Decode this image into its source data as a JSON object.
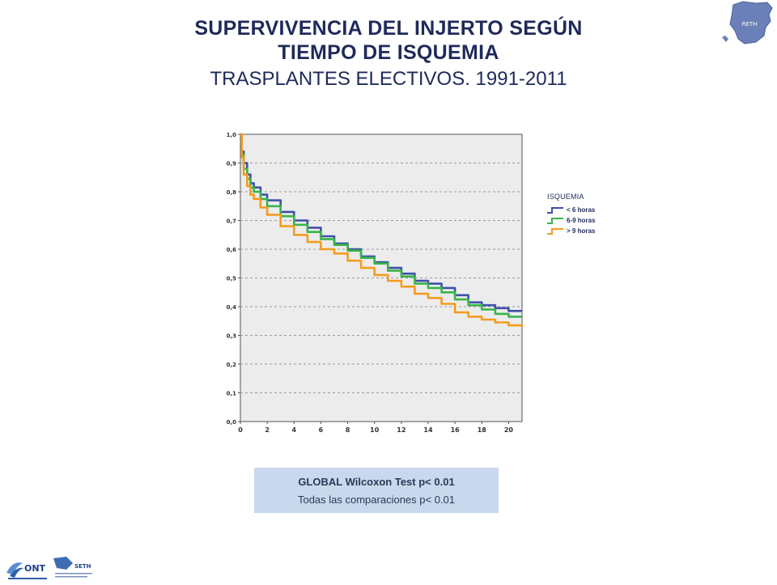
{
  "header": {
    "title_line1": "SUPERVIVENCIA DEL INJERTO SEGÚN",
    "title_line2": "TIEMPO DE ISQUEMIA",
    "subtitle": "TRASPLANTES ELECTIVOS. 1991-2011"
  },
  "logos": {
    "top_right": "RETH",
    "bottom_left_1": "ONT",
    "bottom_left_2": "SETH"
  },
  "stats_box": {
    "line1": "GLOBAL Wilcoxon Test  p< 0.01",
    "line2": "Todas las comparaciones   p< 0.01"
  },
  "legend": {
    "title": "ISQUEMIA"
  },
  "chart_data": {
    "type": "line",
    "step": true,
    "title": "",
    "xlabel": "",
    "ylabel": "",
    "xlim": [
      0,
      21
    ],
    "ylim": [
      0,
      1
    ],
    "x_ticks": [
      0,
      2,
      4,
      6,
      8,
      10,
      12,
      14,
      16,
      18,
      20
    ],
    "y_ticks": [
      0.0,
      0.1,
      0.2,
      0.3,
      0.4,
      0.5,
      0.6,
      0.7,
      0.8,
      0.9,
      1.0
    ],
    "y_tick_labels": [
      "0,0",
      "0,1",
      "0,2",
      "0,3",
      "0,4",
      "0,5",
      "0,6",
      "0,7",
      "0,8",
      "0,9",
      "1,0"
    ],
    "grid": "horizontal dashed",
    "legend_position": "right",
    "background": "#ececec",
    "series": [
      {
        "name": "< 6 horas",
        "color": "#3f51a8",
        "x": [
          0,
          0.1,
          0.25,
          0.5,
          0.75,
          1,
          1.5,
          2,
          3,
          4,
          5,
          6,
          7,
          8,
          9,
          10,
          11,
          12,
          13,
          14,
          15,
          16,
          17,
          18,
          19,
          20,
          21
        ],
        "y": [
          1.0,
          0.94,
          0.9,
          0.86,
          0.83,
          0.815,
          0.79,
          0.77,
          0.73,
          0.7,
          0.675,
          0.645,
          0.62,
          0.6,
          0.575,
          0.555,
          0.535,
          0.515,
          0.49,
          0.48,
          0.465,
          0.44,
          0.415,
          0.405,
          0.395,
          0.385,
          0.385
        ]
      },
      {
        "name": "6-9 horas",
        "color": "#3ab54a",
        "x": [
          0,
          0.1,
          0.25,
          0.5,
          0.75,
          1,
          1.5,
          2,
          3,
          4,
          5,
          6,
          7,
          8,
          9,
          10,
          11,
          12,
          13,
          14,
          15,
          16,
          17,
          18,
          19,
          20,
          21
        ],
        "y": [
          1.0,
          0.93,
          0.88,
          0.845,
          0.815,
          0.8,
          0.775,
          0.75,
          0.715,
          0.685,
          0.66,
          0.635,
          0.615,
          0.595,
          0.57,
          0.55,
          0.525,
          0.505,
          0.48,
          0.465,
          0.45,
          0.425,
          0.405,
          0.39,
          0.375,
          0.365,
          0.365
        ]
      },
      {
        "name": "> 9 horas",
        "color": "#f39c1e",
        "x": [
          0,
          0.1,
          0.25,
          0.5,
          0.75,
          1,
          1.5,
          2,
          3,
          4,
          5,
          6,
          7,
          8,
          9,
          10,
          11,
          12,
          13,
          14,
          15,
          16,
          17,
          18,
          19,
          20,
          21
        ],
        "y": [
          1.0,
          0.92,
          0.86,
          0.82,
          0.79,
          0.775,
          0.745,
          0.72,
          0.68,
          0.65,
          0.625,
          0.6,
          0.585,
          0.56,
          0.535,
          0.51,
          0.49,
          0.47,
          0.445,
          0.43,
          0.41,
          0.38,
          0.365,
          0.355,
          0.345,
          0.335,
          0.33
        ]
      }
    ]
  }
}
